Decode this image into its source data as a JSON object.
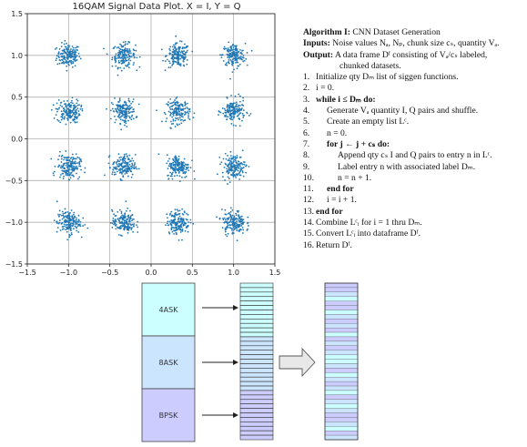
{
  "chart_data": {
    "type": "scatter",
    "title": "16QAM Signal Data Plot. X = I, Y = Q",
    "xlabel": "",
    "ylabel": "",
    "xlim": [
      -1.5,
      1.5
    ],
    "ylim": [
      -1.5,
      1.5
    ],
    "xticks": [
      "−1.5",
      "−1.0",
      "−0.5",
      "0.0",
      "0.5",
      "1.0",
      "1.5"
    ],
    "yticks": [
      "1.5",
      "1.0",
      "0.5",
      "0.0",
      "−0.5",
      "−1.0",
      "−1.5"
    ],
    "grid": true,
    "color": "#1f77b4",
    "cluster_centers_i": [
      -1.0,
      -0.33,
      0.33,
      1.0
    ],
    "cluster_centers_q": [
      1.0,
      0.33,
      -0.33,
      -1.0
    ],
    "cluster_spread": 0.07
  },
  "algorithm": {
    "title": "Algorithm I:",
    "title_text": "CNN Dataset Generation",
    "inputs_label": "Inputs:",
    "inputs_text": "Noise values Nₐ, Nₚ, chunk size cₛ, quantity Vₐ.",
    "output_label": "Output:",
    "output_text": "A data frame Dᶠ consisting of Vₐ/cₛ labeled,",
    "output_text2": "chunked datasets.",
    "lines": [
      {
        "n": "1.",
        "indent": 0,
        "text": "Initialize qty Dₘ list of siggen functions."
      },
      {
        "n": "2.",
        "indent": 0,
        "text": "i = 0."
      },
      {
        "n": "3.",
        "indent": 0,
        "text": "while i ≤ Dₘ do:"
      },
      {
        "n": "4.",
        "indent": 1,
        "text": "Generate Vₐ quantity I, Q pairs and shuffle."
      },
      {
        "n": "5.",
        "indent": 1,
        "text": "Create an empty list Lᶜ."
      },
      {
        "n": "6.",
        "indent": 1,
        "text": "n = 0."
      },
      {
        "n": "7.",
        "indent": 1,
        "text": "for j ← j + cₛ do:"
      },
      {
        "n": "8.",
        "indent": 2,
        "text": "Append qty cₛ I and Q pairs to entry n in Lᶜ."
      },
      {
        "n": "9.",
        "indent": 2,
        "text": "Label entry n with associated label Dₘ."
      },
      {
        "n": "10.",
        "indent": 2,
        "text": "n = n + 1."
      },
      {
        "n": "11.",
        "indent": 1,
        "text": "end for"
      },
      {
        "n": "12.",
        "indent": 1,
        "text": "i = i + 1."
      },
      {
        "n": "13.",
        "indent": 0,
        "text": "end for"
      },
      {
        "n": "14.",
        "indent": 0,
        "text": "Combine Lᶜᵢ for i = 1 thru Dₘ."
      },
      {
        "n": "15.",
        "indent": 0,
        "text": "Convert Lᶜᵢ into dataframe Dᶠ."
      },
      {
        "n": "16.",
        "indent": 0,
        "text": "Return Dᶠ."
      }
    ]
  },
  "diagram": {
    "blocks": [
      {
        "label": "4ASK",
        "color": "#ccffff"
      },
      {
        "label": "8ASK",
        "color": "#cce5ff"
      },
      {
        "label": "BPSK",
        "color": "#ccccff"
      }
    ],
    "stripe_colors": [
      "#ccffff",
      "#cce5ff",
      "#ccccff"
    ],
    "shuffled_pattern": [
      2,
      2,
      1,
      0,
      2,
      2,
      0,
      1,
      2,
      1,
      2,
      0,
      2,
      1,
      2,
      1,
      0,
      0,
      1,
      2,
      0,
      1,
      2,
      1,
      0,
      2,
      1,
      0,
      1,
      2,
      2,
      1,
      0,
      2,
      1
    ]
  }
}
